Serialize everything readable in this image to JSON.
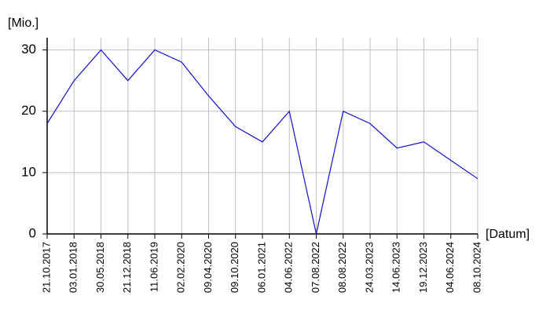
{
  "chart_data": {
    "type": "line",
    "ylabel": "[Mio.]",
    "xlabel": "[Datum]",
    "categories": [
      "21.10.2017",
      "03.01.2018",
      "30.05.2018",
      "21.12.2018",
      "11.06.2019",
      "02.02.2020",
      "09.04.2020",
      "09.10.2020",
      "06.01.2021",
      "04.06.2022",
      "07.08.2022",
      "08.08.2022",
      "24.03.2023",
      "14.06.2023",
      "19.12.2023",
      "04.06.2024",
      "08.10.2024"
    ],
    "values": [
      18,
      25,
      30,
      25,
      30,
      28,
      22.5,
      17.5,
      15,
      20,
      0,
      20,
      18,
      14,
      15,
      12,
      9
    ],
    "color": "#1010d0",
    "ylim": [
      0,
      32
    ],
    "yticks": [
      0,
      10,
      20,
      30
    ],
    "grid": true
  }
}
